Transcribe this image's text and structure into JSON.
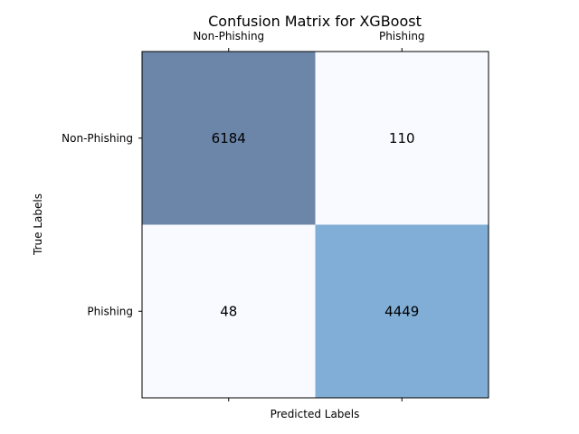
{
  "chart_data": {
    "type": "heatmap",
    "title": "Confusion Matrix for XGBoost",
    "xlabel": "Predicted Labels",
    "ylabel": "True Labels",
    "x_categories": [
      "Non-Phishing",
      "Phishing"
    ],
    "y_categories": [
      "Non-Phishing",
      "Phishing"
    ],
    "values": [
      [
        6184,
        110
      ],
      [
        48,
        4449
      ]
    ],
    "cell_colors": [
      [
        "#6c86aa",
        "#f8faff"
      ],
      [
        "#f8faff",
        "#80aed6"
      ]
    ],
    "x_tick_position": "top"
  }
}
